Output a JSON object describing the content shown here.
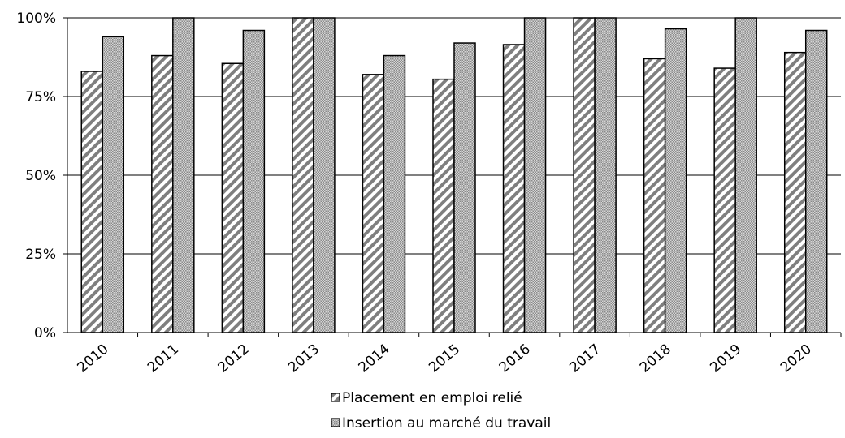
{
  "chart_data": {
    "type": "bar",
    "categories": [
      "2010",
      "2011",
      "2012",
      "2013",
      "2014",
      "2015",
      "2016",
      "2017",
      "2018",
      "2019",
      "2020"
    ],
    "series": [
      {
        "name": "Placement en emploi relié",
        "pattern": "diagonal-stripes",
        "values": [
          83,
          88,
          85.5,
          100,
          82,
          80.5,
          91.5,
          100,
          87,
          84,
          89
        ]
      },
      {
        "name": "Insertion au marché du travail",
        "pattern": "dotted",
        "values": [
          94,
          100,
          96,
          100,
          88,
          92,
          100,
          100,
          96.5,
          100,
          96
        ]
      }
    ],
    "ylim": [
      0,
      100
    ],
    "yticks": [
      "0%",
      "25%",
      "50%",
      "75%",
      "100%"
    ],
    "ytick_values": [
      0,
      25,
      50,
      75,
      100
    ],
    "grid": true,
    "legend_position": "bottom",
    "colors": {
      "stripe": "#7f7f7f",
      "dot": "#9a9a9a",
      "outline": "#000000"
    }
  }
}
